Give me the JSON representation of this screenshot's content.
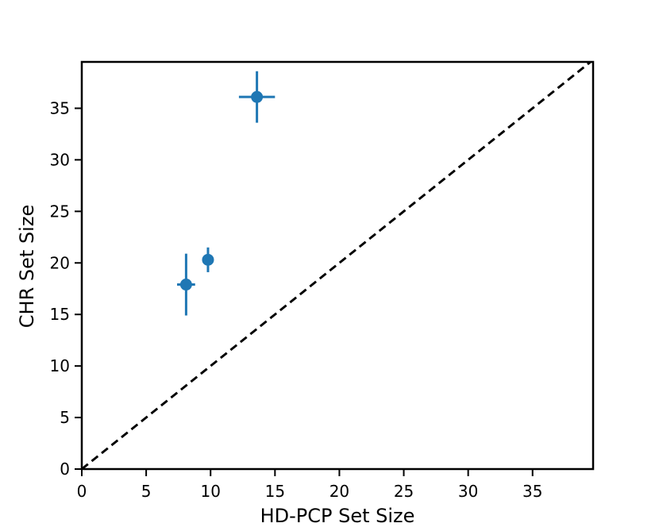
{
  "chart_data": {
    "type": "scatter",
    "title": "",
    "xlabel": "HD-PCP Set Size",
    "ylabel": "CHR Set Size",
    "xlim": [
      0,
      39.7
    ],
    "ylim": [
      0,
      39.5
    ],
    "xticks": [
      0,
      5,
      10,
      15,
      20,
      25,
      30,
      35
    ],
    "yticks": [
      0,
      5,
      10,
      15,
      20,
      25,
      30,
      35
    ],
    "grid": false,
    "legend": "none",
    "series": [
      {
        "color": "#1f77b4",
        "points": [
          {
            "x": 8.1,
            "y": 17.9,
            "xerr": 0.7,
            "yerr": 3.0
          },
          {
            "x": 9.8,
            "y": 20.3,
            "xerr": 0.0,
            "yerr": 1.2
          },
          {
            "x": 13.6,
            "y": 36.1,
            "xerr": 1.4,
            "yerr": 2.5
          }
        ]
      }
    ],
    "reference_line": {
      "type": "identity",
      "style": "dashed",
      "color": "#000000"
    }
  }
}
